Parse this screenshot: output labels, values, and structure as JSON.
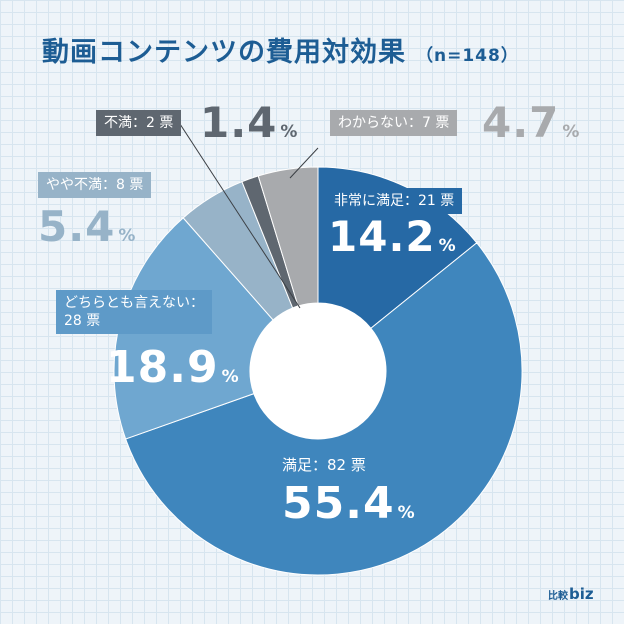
{
  "title": {
    "main": "動画コンテンツの費用対効果",
    "n_label": "（n=148）"
  },
  "chart_data": {
    "type": "pie",
    "donut": true,
    "title": "動画コンテンツの費用対効果（n=148）",
    "total": 148,
    "unit_votes": "票",
    "slices": [
      {
        "label": "非常に満足",
        "votes": 21,
        "votes_text": "非常に満足：21 票",
        "percent": 14.2,
        "percent_text": "14.2",
        "color": "#2669a5"
      },
      {
        "label": "満足",
        "votes": 82,
        "votes_text": "満足：82 票",
        "percent": 55.4,
        "percent_text": "55.4",
        "color": "#3f86bd"
      },
      {
        "label": "どちらとも言えない",
        "votes": 28,
        "votes_text_line1": "どちらとも言えない：",
        "votes_text_line2": "28 票",
        "percent": 18.9,
        "percent_text": "18.9",
        "color": "#6fa7d0"
      },
      {
        "label": "やや不満",
        "votes": 8,
        "votes_text": "やや不満：8 票",
        "percent": 5.4,
        "percent_text": "5.4",
        "color": "#97b3c8"
      },
      {
        "label": "不満",
        "votes": 2,
        "votes_text": "不満：2 票",
        "percent": 1.4,
        "percent_text": "1.4",
        "color": "#5f6770"
      },
      {
        "label": "わからない",
        "votes": 7,
        "votes_text": "わからない：7 票",
        "percent": 4.7,
        "percent_text": "4.7",
        "color": "#a8aaad"
      }
    ],
    "percent_sign": "%"
  },
  "logo": {
    "jp": "比較",
    "biz": "biz"
  }
}
